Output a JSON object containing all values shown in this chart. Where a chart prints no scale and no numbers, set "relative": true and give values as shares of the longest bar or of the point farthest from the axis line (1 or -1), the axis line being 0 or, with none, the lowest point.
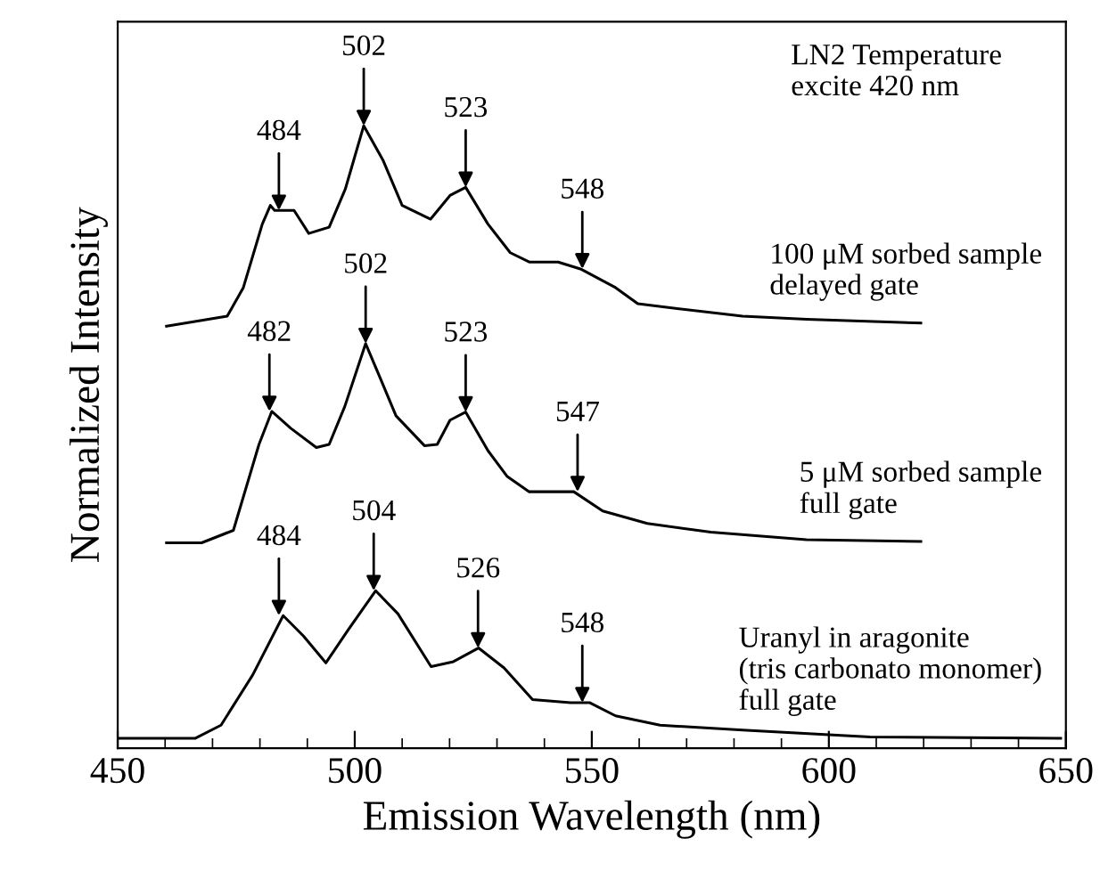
{
  "chart_data": {
    "type": "line",
    "relative": true,
    "xlabel": "Emission Wavelength (nm)",
    "ylabel": "Normalized Intensity",
    "xlim": [
      450,
      650
    ],
    "xticks": [
      450,
      500,
      550,
      600,
      650
    ],
    "tick_labels": "x",
    "grid": false,
    "legend": false,
    "marker": "none",
    "line_style": "solid",
    "series": [
      {
        "name": "100 μM sorbed sample\ndelayed gate",
        "color": "#000000",
        "x": [
          460.3,
          473.1,
          476.5,
          480.5,
          482.2,
          483.1,
          487.2,
          490.3,
          494.6,
          498,
          501.9,
          506,
          510,
          516,
          520.1,
          523.4,
          528.1,
          532.8,
          536.8,
          542.9,
          547.6,
          555,
          559.7,
          568.4,
          581.8,
          595.3,
          619.4
        ],
        "values": [
          0.678,
          0.694,
          0.74,
          0.842,
          0.872,
          0.864,
          0.864,
          0.827,
          0.837,
          0.898,
          1.0,
          0.944,
          0.872,
          0.85,
          0.888,
          0.901,
          0.842,
          0.796,
          0.781,
          0.781,
          0.77,
          0.74,
          0.714,
          0.706,
          0.694,
          0.689,
          0.683
        ]
      },
      {
        "name": "5 μM sorbed sample\nfull gate",
        "color": "#000000",
        "x": [
          460.3,
          467.7,
          474.4,
          479.8,
          482.5,
          486.5,
          491.9,
          494.6,
          497.9,
          502.3,
          505.3,
          508.7,
          514.7,
          517.4,
          520.1,
          523.4,
          528.1,
          532.1,
          536.8,
          546.2,
          552.3,
          561.7,
          575.1,
          595.3,
          619.4
        ],
        "values": [
          0.33,
          0.33,
          0.35,
          0.488,
          0.541,
          0.514,
          0.483,
          0.488,
          0.549,
          0.65,
          0.596,
          0.534,
          0.486,
          0.488,
          0.527,
          0.54,
          0.478,
          0.437,
          0.412,
          0.412,
          0.381,
          0.361,
          0.347,
          0.335,
          0.332
        ]
      },
      {
        "name": "Uranyl in aragonite\n(tris carbonato monomer)\nfull gate",
        "color": "#000000",
        "x": [
          450,
          466.4,
          471.8,
          478.5,
          484.9,
          489.2,
          493.9,
          498.6,
          504.4,
          509.1,
          516.1,
          520.8,
          526.1,
          531.5,
          537.5,
          545.5,
          549.6,
          555,
          564.4,
          581.8,
          608.7,
          648.9
        ],
        "values": [
          0.016,
          0.016,
          0.037,
          0.118,
          0.213,
          0.18,
          0.137,
          0.19,
          0.253,
          0.216,
          0.131,
          0.139,
          0.161,
          0.129,
          0.078,
          0.073,
          0.073,
          0.052,
          0.037,
          0.029,
          0.018,
          0.016
        ]
      }
    ],
    "annotations": [
      "LN2 Temperature\nexcite 420 nm",
      {
        "text": "484",
        "x": 484,
        "y": 0.864
      },
      {
        "text": "502",
        "x": 501.9,
        "y": 1.0
      },
      {
        "text": "523",
        "x": 523.4,
        "y": 0.901
      },
      {
        "text": "548",
        "x": 548,
        "y": 0.77
      },
      {
        "text": "482",
        "x": 482,
        "y": 0.541
      },
      {
        "text": "502",
        "x": 502.3,
        "y": 0.65
      },
      {
        "text": "523",
        "x": 523.4,
        "y": 0.54
      },
      {
        "text": "547",
        "x": 547,
        "y": 0.412
      },
      {
        "text": "484",
        "x": 484,
        "y": 0.213
      },
      {
        "text": "504",
        "x": 504,
        "y": 0.253
      },
      {
        "text": "526",
        "x": 526,
        "y": 0.161
      },
      {
        "text": "548",
        "x": 548,
        "y": 0.073
      }
    ]
  }
}
